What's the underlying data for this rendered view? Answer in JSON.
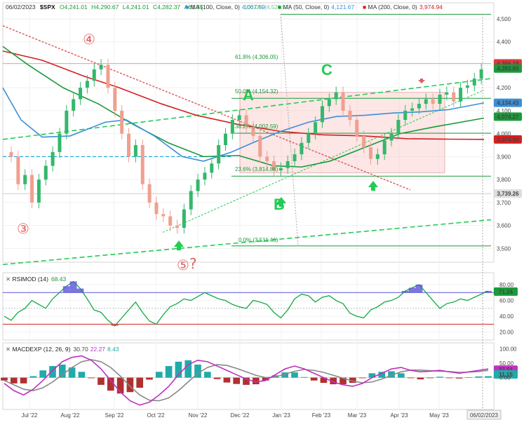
{
  "header": {
    "date": "06/02/2023",
    "symbol": "$SPX",
    "open": "O4,241.01",
    "high": "H4,290.67",
    "low": "L4,241.01",
    "close": "C4,282.37",
    "change": "Λ61.35",
    "ma100": "MA (100, Close, 0)",
    "ma100_val": "4,067.59",
    "ma50": "MA (50, Close, 0)",
    "ma50_val": "4,121.67",
    "ma200": "MA (200, Close, 0)",
    "ma200_val": "3,974.94",
    "rsi_label": "RSIMOD (14)",
    "rsi_val": "68.43",
    "macd_label": "MACDEXP (12, 26, 9)",
    "macd_v1": "30.70",
    "macd_v2": "22.27",
    "macd_v3": "8.43"
  },
  "colors": {
    "ma100": "#3a8fd8",
    "ma50": "#1a9a3a",
    "ma200": "#d42020",
    "up": "#33b86b",
    "down": "#f0a090",
    "fib": "#1a9a3a",
    "annot": "#e06060",
    "rsi_fill": "#5b54d8",
    "rsi_line": "#11aa44",
    "macd_line": "#c030c0",
    "signal": "#888888",
    "hist_up": "#22aaaa",
    "hist_down": "#b03030"
  },
  "annotations": {
    "c4": "④",
    "c3": "③",
    "c5": "⑤",
    "q": "?",
    "A": "A",
    "B": "B",
    "C": "C"
  },
  "chart_data": [
    {
      "type": "candlestick",
      "title": "$SPX",
      "x_ticks": [
        "Jul '22",
        "Aug '22",
        "Sep '22",
        "Oct '22",
        "Nov '22",
        "Dec '22",
        "Jan '23",
        "Feb '23",
        "Mar '23",
        "Apr '23",
        "May '23",
        "06/02/2023"
      ],
      "y_ticks": [
        3500,
        3600,
        3700,
        3800,
        3900,
        4000,
        4100,
        4200,
        4300,
        4400,
        4500
      ],
      "ylim": [
        3440,
        4570
      ],
      "price_labels": [
        {
          "text": "4,306.18",
          "color": "#e03a3a"
        },
        {
          "text": "4,283.85",
          "color": "#1a9a3a"
        },
        {
          "text": "4,134.43",
          "color": "#3a8fd8"
        },
        {
          "text": "4,074.27",
          "color": "#1a9a3a"
        },
        {
          "text": "3,974.94",
          "color": "#d42020"
        },
        {
          "text": "3,739.26",
          "color": "#dddddd"
        }
      ],
      "fib_levels": [
        {
          "label": "61.8% (4,306.05)",
          "value": 4306
        },
        {
          "label": "50.0% (4,154.32)",
          "value": 4154
        },
        {
          "label": "38.2% (4,002.59)",
          "value": 4002
        },
        {
          "label": "23.6% (3,814.86)",
          "value": 3815
        },
        {
          "label": "0.0% (3,511.46)",
          "value": 3511
        }
      ],
      "top_fib_label": "100.0% (4,520.07)",
      "close_approx": [
        3900,
        3780,
        3820,
        3700,
        3800,
        3860,
        3920,
        4000,
        4100,
        4150,
        4200,
        4230,
        4280,
        4300,
        4200,
        4100,
        4000,
        3900,
        3950,
        3780,
        3700,
        3650,
        3640,
        3600,
        3590,
        3670,
        3750,
        3800,
        3830,
        3870,
        3950,
        4000,
        4060,
        4080,
        4030,
        3990,
        3900,
        3880,
        3840,
        3850,
        3880,
        3910,
        3960,
        4000,
        4050,
        4120,
        4150,
        4180,
        4100,
        4060,
        3990,
        3940,
        3890,
        3910,
        3970,
        4000,
        4060,
        4100,
        4110,
        4130,
        4150,
        4130,
        4170,
        4180,
        4140,
        4200,
        4210,
        4240,
        4280
      ]
    },
    {
      "type": "line",
      "title": "RSIMOD (14)",
      "y_ticks": [
        20,
        40,
        60,
        80
      ],
      "ylim": [
        10,
        95
      ],
      "overbought": 70,
      "oversold": 30,
      "last_label": "71.24",
      "values": [
        40,
        35,
        45,
        50,
        60,
        55,
        50,
        62,
        70,
        78,
        84,
        75,
        62,
        48,
        45,
        35,
        28,
        38,
        48,
        58,
        45,
        34,
        30,
        42,
        52,
        56,
        62,
        60,
        65,
        70,
        66,
        62,
        60,
        55,
        52,
        50,
        60,
        58,
        55,
        45,
        38,
        48,
        62,
        68,
        66,
        58,
        64,
        66,
        60,
        56,
        44,
        40,
        38,
        48,
        52,
        58,
        60,
        64,
        72,
        76,
        80,
        70,
        60,
        50,
        56,
        58,
        62,
        60,
        64,
        68,
        72
      ]
    },
    {
      "type": "line",
      "title": "MACDEXP (12, 26, 9)",
      "y_ticks": [
        100,
        50,
        0
      ],
      "ylim": [
        -110,
        120
      ],
      "last_labels": [
        "27.51",
        "11.15"
      ],
      "macd": [
        -20,
        -45,
        -60,
        -40,
        -10,
        25,
        55,
        70,
        75,
        60,
        30,
        -10,
        -50,
        -80,
        -95,
        -85,
        -60,
        -30,
        10,
        45,
        60,
        55,
        40,
        25,
        10,
        -5,
        -15,
        -10,
        10,
        30,
        40,
        30,
        15,
        0,
        -15,
        -25,
        -30,
        -20,
        0,
        15,
        30,
        35,
        25,
        20,
        22,
        25,
        20,
        15,
        20,
        25,
        30
      ],
      "signal": [
        -10,
        -25,
        -40,
        -45,
        -35,
        -15,
        10,
        35,
        55,
        62,
        55,
        35,
        5,
        -30,
        -60,
        -78,
        -80,
        -70,
        -45,
        -15,
        15,
        35,
        45,
        42,
        32,
        20,
        8,
        0,
        2,
        12,
        22,
        28,
        25,
        18,
        8,
        -2,
        -12,
        -18,
        -15,
        -5,
        8,
        20,
        26,
        26,
        24,
        22,
        21,
        18,
        19,
        21,
        25
      ],
      "histogram": [
        -10,
        -20,
        -20,
        5,
        25,
        40,
        45,
        35,
        20,
        -2,
        -25,
        -45,
        -55,
        -50,
        -35,
        -7,
        20,
        40,
        55,
        60,
        45,
        20,
        -5,
        -17,
        -22,
        -25,
        -23,
        -10,
        8,
        18,
        18,
        2,
        -10,
        -18,
        -23,
        -23,
        -18,
        -2,
        15,
        20,
        22,
        15,
        -1,
        -6,
        -2,
        3,
        -1,
        -3,
        1,
        4,
        5
      ]
    }
  ]
}
